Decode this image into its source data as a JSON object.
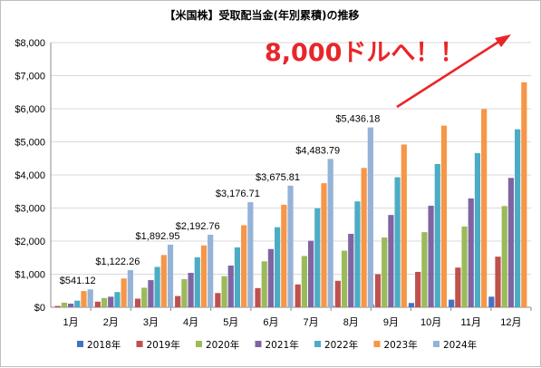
{
  "chart_data": {
    "type": "bar",
    "title": "【米国株】受取配当金(年別累積)の推移",
    "xlabel": "",
    "ylabel": "",
    "ylim": [
      0,
      8000
    ],
    "yticks": [
      "$0",
      "$1,000",
      "$2,000",
      "$3,000",
      "$4,000",
      "$5,000",
      "$6,000",
      "$7,000",
      "$8,000"
    ],
    "grid": true,
    "legend_position": "bottom",
    "categories": [
      "1月",
      "2月",
      "3月",
      "4月",
      "5月",
      "6月",
      "7月",
      "8月",
      "9月",
      "10月",
      "11月",
      "12月"
    ],
    "series": [
      {
        "name": "2018年",
        "color": "#4472c4",
        "values": [
          0,
          0,
          0,
          0,
          0,
          0,
          0,
          50,
          80,
          130,
          230,
          320
        ]
      },
      {
        "name": "2019年",
        "color": "#c0504d",
        "values": [
          40,
          170,
          260,
          340,
          430,
          580,
          690,
          800,
          1000,
          1070,
          1200,
          1530
        ]
      },
      {
        "name": "2020年",
        "color": "#9bbb59",
        "values": [
          140,
          280,
          590,
          850,
          940,
          1390,
          1550,
          1710,
          2110,
          2270,
          2440,
          3060
        ]
      },
      {
        "name": "2021年",
        "color": "#8064a2",
        "values": [
          110,
          320,
          820,
          1040,
          1260,
          1760,
          2010,
          2220,
          2790,
          3070,
          3290,
          3910
        ]
      },
      {
        "name": "2022年",
        "color": "#4bacc6",
        "values": [
          200,
          460,
          1220,
          1510,
          1810,
          2420,
          2990,
          3200,
          3930,
          4330,
          4660,
          5380
        ]
      },
      {
        "name": "2023年",
        "color": "#f79646",
        "values": [
          490,
          870,
          1580,
          1870,
          2480,
          3100,
          3750,
          4210,
          4920,
          5490,
          5990,
          6800
        ]
      },
      {
        "name": "2024年",
        "color": "#95b3d7",
        "values": [
          541.12,
          1122.26,
          1892.95,
          2192.76,
          3176.71,
          3675.81,
          4483.79,
          5436.18,
          null,
          null,
          null,
          null
        ]
      }
    ],
    "data_labels": [
      "$541.12",
      "$1,122.26",
      "$1,892.95",
      "$2,192.76",
      "$3,176.71",
      "$3,675.81",
      "$4,483.79",
      "$5,436.18"
    ],
    "annotation": {
      "text": "8,000ドルへ！！",
      "color": "#e8262a"
    }
  }
}
